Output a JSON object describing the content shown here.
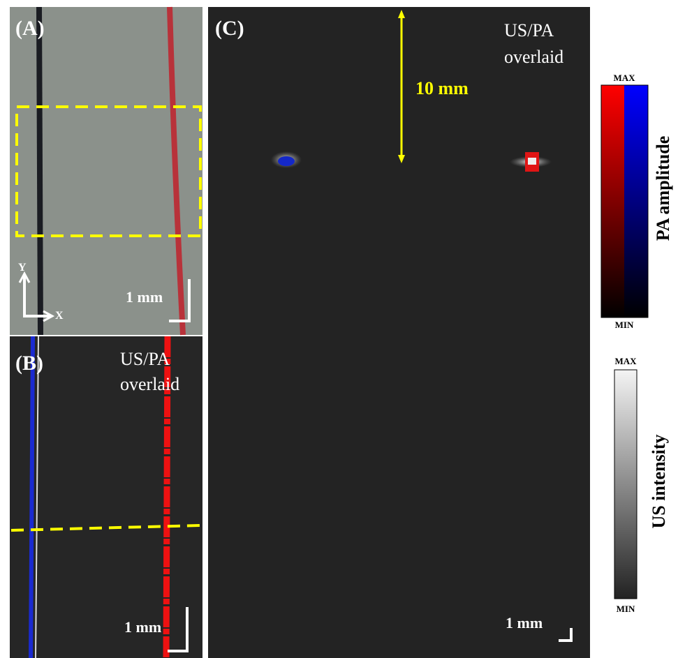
{
  "panels": [
    {
      "label": "(A)",
      "axes": {
        "y": "Y",
        "x": "X"
      },
      "scale_bar": "1 mm"
    },
    {
      "label": "(B)",
      "caption": [
        "US/PA",
        "overlaid"
      ],
      "scale_bar": "1 mm"
    },
    {
      "label": "(C)",
      "caption": [
        "US/PA",
        "overlaid"
      ],
      "distance": "10 mm",
      "scale_bar": "1 mm"
    }
  ],
  "colorbars": [
    {
      "max": "MAX",
      "min": "MIN",
      "title": "PA amplitude"
    },
    {
      "max": "MAX",
      "min": "MIN",
      "title": "US intensity"
    }
  ]
}
